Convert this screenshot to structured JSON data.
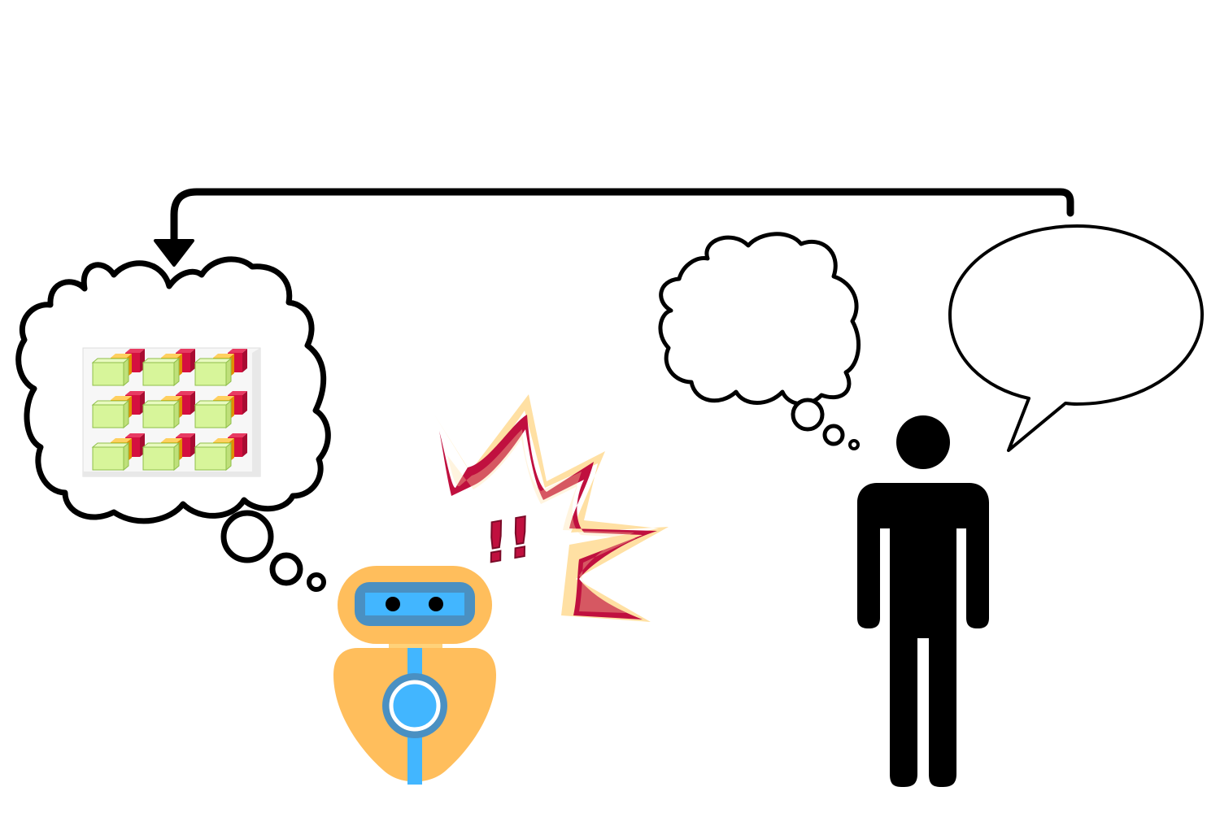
{
  "colors": {
    "outline": "#000000",
    "robot_body": "#FFBE5C",
    "robot_visor": "#4A90C2",
    "robot_screen": "#42B6FF",
    "robot_eye": "#000000",
    "burst_outer": "#FFE0A3",
    "burst_inner": "#C0103F",
    "exclaim": "#C0103F",
    "cube_green": "#D7F59A",
    "cube_orange": "#FFB000",
    "cube_red": "#D5103F",
    "human": "#000000"
  },
  "icons": {
    "robot": "robot-icon",
    "human": "person-icon",
    "alert": "burst-icon",
    "feedback_arrow": "arrow-icon"
  },
  "robot_alert": {
    "exclaim_text": "!!"
  },
  "robot_thought": {
    "content": "cube-grid-icon"
  },
  "human_thought": {
    "content": ""
  },
  "human_speech": {
    "content": ""
  }
}
